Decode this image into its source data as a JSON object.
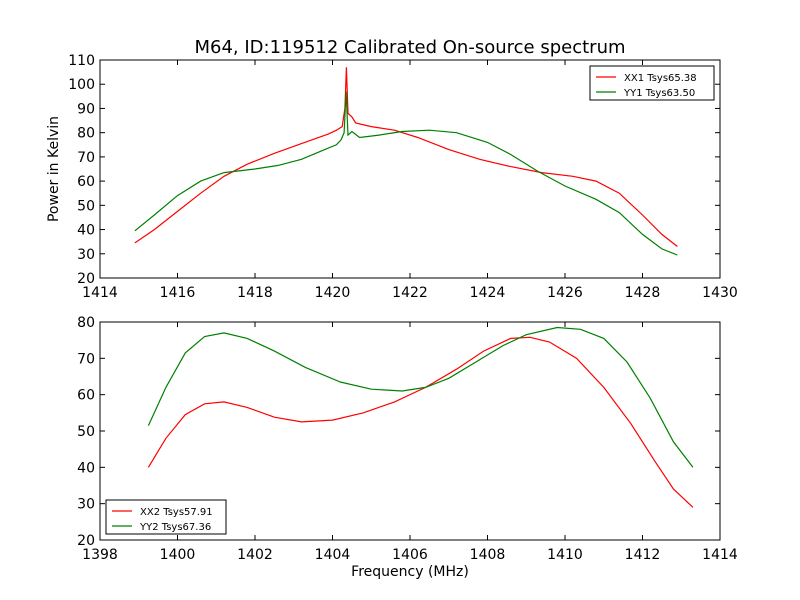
{
  "title": "M64, ID:119512 Calibrated On-source spectrum",
  "chart_data": [
    {
      "type": "line",
      "title": "M64, ID:119512 Calibrated On-source spectrum",
      "xlabel": "",
      "ylabel": "Power in Kelvin",
      "xlim": [
        1414,
        1430
      ],
      "ylim": [
        20,
        110
      ],
      "xticks": [
        1414,
        1416,
        1418,
        1420,
        1422,
        1424,
        1426,
        1428,
        1430
      ],
      "yticks": [
        20,
        30,
        40,
        50,
        60,
        70,
        80,
        90,
        100,
        110
      ],
      "grid": false,
      "legend_position": "top-right",
      "series": [
        {
          "name": "XX1 Tsys65.38",
          "color": "#ff0000",
          "points": [
            [
              1414.9,
              34.5
            ],
            [
              1415.4,
              40
            ],
            [
              1416.0,
              47.5
            ],
            [
              1416.6,
              55
            ],
            [
              1417.2,
              62
            ],
            [
              1417.8,
              67
            ],
            [
              1418.5,
              71.5
            ],
            [
              1419.2,
              75.5
            ],
            [
              1419.9,
              79.5
            ],
            [
              1420.1,
              81
            ],
            [
              1420.25,
              82.5
            ],
            [
              1420.32,
              90
            ],
            [
              1420.36,
              107
            ],
            [
              1420.4,
              88
            ],
            [
              1420.5,
              86.5
            ],
            [
              1420.6,
              84
            ],
            [
              1421.0,
              82.5
            ],
            [
              1421.6,
              81
            ],
            [
              1422.2,
              78
            ],
            [
              1423.0,
              73
            ],
            [
              1423.8,
              69
            ],
            [
              1424.6,
              66
            ],
            [
              1425.4,
              63.5
            ],
            [
              1426.2,
              62
            ],
            [
              1426.8,
              60
            ],
            [
              1427.4,
              55
            ],
            [
              1428.0,
              46
            ],
            [
              1428.5,
              38
            ],
            [
              1428.9,
              33
            ]
          ]
        },
        {
          "name": "YY1 Tsys63.50",
          "color": "#008000",
          "points": [
            [
              1414.9,
              39.5
            ],
            [
              1415.4,
              46
            ],
            [
              1416.0,
              54
            ],
            [
              1416.6,
              60
            ],
            [
              1417.2,
              63.5
            ],
            [
              1418.0,
              65
            ],
            [
              1418.6,
              66.5
            ],
            [
              1419.2,
              69
            ],
            [
              1419.8,
              73
            ],
            [
              1420.1,
              75
            ],
            [
              1420.22,
              77
            ],
            [
              1420.3,
              80
            ],
            [
              1420.35,
              97
            ],
            [
              1420.4,
              79
            ],
            [
              1420.5,
              80.5
            ],
            [
              1420.7,
              78
            ],
            [
              1421.2,
              79
            ],
            [
              1421.8,
              80.5
            ],
            [
              1422.5,
              81
            ],
            [
              1423.2,
              80
            ],
            [
              1424.0,
              76
            ],
            [
              1424.6,
              71
            ],
            [
              1425.3,
              64
            ],
            [
              1426.0,
              58
            ],
            [
              1426.8,
              52.5
            ],
            [
              1427.4,
              47
            ],
            [
              1428.0,
              38
            ],
            [
              1428.5,
              32
            ],
            [
              1428.9,
              29.5
            ]
          ]
        }
      ]
    },
    {
      "type": "line",
      "title": "",
      "xlabel": "Frequency (MHz)",
      "ylabel": "",
      "xlim": [
        1398,
        1414
      ],
      "ylim": [
        20,
        80
      ],
      "xticks": [
        1398,
        1400,
        1402,
        1404,
        1406,
        1408,
        1410,
        1412,
        1414
      ],
      "yticks": [
        20,
        30,
        40,
        50,
        60,
        70,
        80
      ],
      "grid": false,
      "legend_position": "bottom-left",
      "series": [
        {
          "name": "XX2 Tsys57.91",
          "color": "#ff0000",
          "points": [
            [
              1399.25,
              40
            ],
            [
              1399.7,
              48
            ],
            [
              1400.2,
              54.5
            ],
            [
              1400.7,
              57.5
            ],
            [
              1401.2,
              58
            ],
            [
              1401.8,
              56.5
            ],
            [
              1402.5,
              53.8
            ],
            [
              1403.2,
              52.5
            ],
            [
              1404.0,
              53
            ],
            [
              1404.8,
              55
            ],
            [
              1405.6,
              58
            ],
            [
              1406.4,
              62
            ],
            [
              1407.2,
              67
            ],
            [
              1407.9,
              72
            ],
            [
              1408.6,
              75.5
            ],
            [
              1409.1,
              75.8
            ],
            [
              1409.6,
              74.5
            ],
            [
              1410.3,
              70
            ],
            [
              1411.0,
              62
            ],
            [
              1411.7,
              52
            ],
            [
              1412.3,
              42
            ],
            [
              1412.8,
              34
            ],
            [
              1413.3,
              29
            ]
          ]
        },
        {
          "name": "YY2 Tsys67.36",
          "color": "#008000",
          "points": [
            [
              1399.25,
              51.5
            ],
            [
              1399.7,
              62
            ],
            [
              1400.2,
              71.5
            ],
            [
              1400.7,
              76
            ],
            [
              1401.2,
              77
            ],
            [
              1401.8,
              75.5
            ],
            [
              1402.5,
              72
            ],
            [
              1403.3,
              67.5
            ],
            [
              1404.2,
              63.5
            ],
            [
              1405.0,
              61.5
            ],
            [
              1405.8,
              61
            ],
            [
              1406.4,
              62
            ],
            [
              1407.0,
              64.5
            ],
            [
              1407.7,
              69
            ],
            [
              1408.4,
              73.5
            ],
            [
              1409.0,
              76.5
            ],
            [
              1409.8,
              78.5
            ],
            [
              1410.4,
              78
            ],
            [
              1411.0,
              75.5
            ],
            [
              1411.6,
              69
            ],
            [
              1412.2,
              59
            ],
            [
              1412.8,
              47
            ],
            [
              1413.3,
              40
            ]
          ]
        }
      ]
    }
  ]
}
